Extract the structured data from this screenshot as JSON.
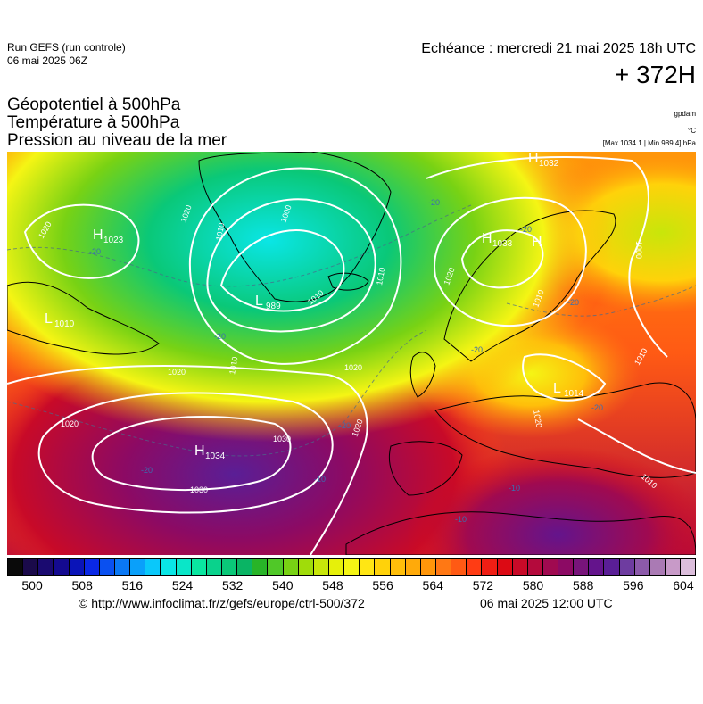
{
  "header": {
    "run_title": "Run GEFS (run controle)",
    "run_date": "06 mai 2025 06Z",
    "valid_time": "Echéance : mercredi 21 mai 2025 18h UTC",
    "lead_time": "+ 372H",
    "params": [
      "Géopotentiel à 500hPa",
      "Température à 500hPa",
      "Pression au niveau de la mer"
    ],
    "units": [
      "gpdam",
      "°C",
      "[Max 1034.1 | Min 989.4] hPa"
    ]
  },
  "map": {
    "pressure_centers": [
      {
        "type": "H",
        "value": "1023",
        "region": "Labrador"
      },
      {
        "type": "L",
        "value": "1010",
        "region": "Canadian coast"
      },
      {
        "type": "L",
        "value": "989",
        "region": "Greenland"
      },
      {
        "type": "H",
        "value": "1034",
        "region": "Mid-Atlantic"
      },
      {
        "type": "H",
        "value": "1033",
        "region": "Scandinavia"
      },
      {
        "type": "H",
        "value": "1032",
        "region": "Barents Sea"
      },
      {
        "type": "H",
        "value": "",
        "region": "Finland"
      },
      {
        "type": "L",
        "value": "1014",
        "region": "Eastern Europe"
      }
    ],
    "isobar_labels": [
      "1020",
      "1010",
      "1000",
      "1020",
      "1010",
      "1020",
      "1030",
      "1030",
      "1020",
      "1020",
      "1010",
      "1010",
      "1020",
      "1010",
      "1000",
      "1010",
      "1010",
      "1020",
      "1020"
    ],
    "isotherm_labels": [
      "-20",
      "-20",
      "-20",
      "-20",
      "-20",
      "-20",
      "-20",
      "-10",
      "-10",
      "-10",
      "-20",
      "-20"
    ]
  },
  "colorbar": {
    "colors": [
      "#0a0a0a",
      "#1a0a4a",
      "#1a0a70",
      "#140a90",
      "#0a14b8",
      "#0a28e6",
      "#0a50f0",
      "#0a78f5",
      "#0aa0fa",
      "#0ac8fa",
      "#0ae6e6",
      "#0ae6c8",
      "#0ae6a0",
      "#0ad28c",
      "#0ac878",
      "#0ab464",
      "#28b428",
      "#50c828",
      "#78d214",
      "#a0dc0a",
      "#c8e60a",
      "#e6f00a",
      "#f5f514",
      "#ffe614",
      "#ffd20a",
      "#ffbe0a",
      "#ffaa0a",
      "#ff960a",
      "#ff7814",
      "#ff5a14",
      "#ff3c14",
      "#f01e14",
      "#dc0a14",
      "#c80a28",
      "#b40a3c",
      "#a00a50",
      "#8c0a64",
      "#78147a",
      "#64148c",
      "#5a1e96",
      "#6e3ca0",
      "#8c5aaa",
      "#aa7ab4",
      "#c89ac8",
      "#dcbedc"
    ],
    "tick_labels": [
      "500",
      "508",
      "516",
      "524",
      "532",
      "540",
      "548",
      "556",
      "564",
      "572",
      "580",
      "588",
      "596",
      "604"
    ],
    "tick_values": [
      500,
      508,
      516,
      524,
      532,
      540,
      548,
      556,
      564,
      572,
      580,
      588,
      596,
      604
    ],
    "range": [
      496,
      606
    ]
  },
  "footer": {
    "source": "© http://www.infoclimat.fr/z/gefs/europe/ctrl-500/372",
    "issued": "06 mai 2025 12:00 UTC"
  }
}
